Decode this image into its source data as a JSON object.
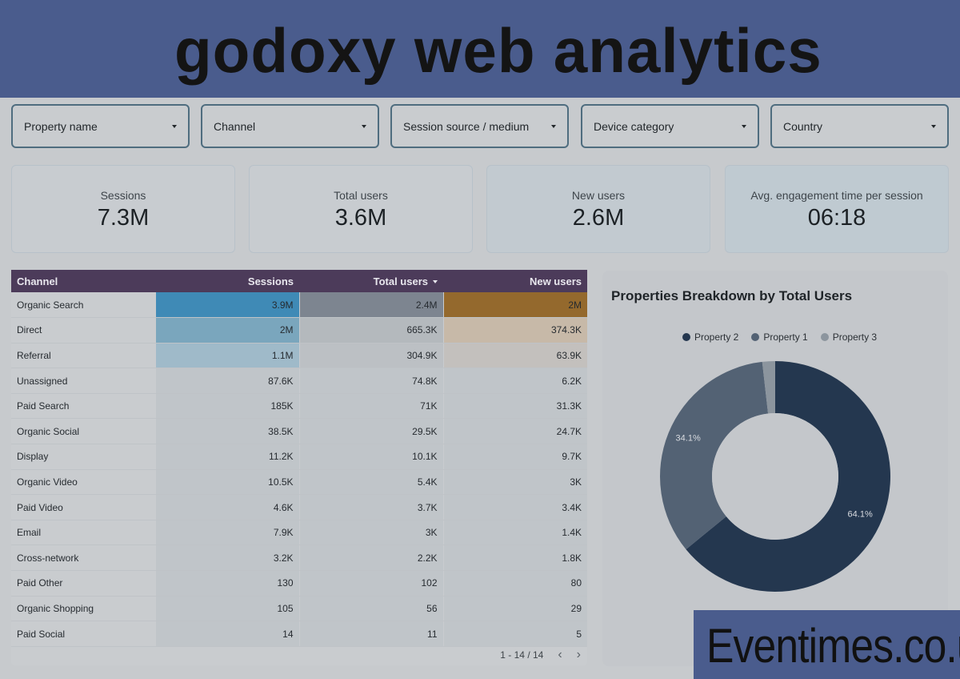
{
  "banner": {
    "title": "godoxy web analytics"
  },
  "filters": [
    {
      "label": "Property name"
    },
    {
      "label": "Channel"
    },
    {
      "label": "Session source / medium"
    },
    {
      "label": "Device category"
    },
    {
      "label": "Country"
    }
  ],
  "kpis": [
    {
      "label": "Sessions",
      "value": "7.3M"
    },
    {
      "label": "Total users",
      "value": "3.6M"
    },
    {
      "label": "New users",
      "value": "2.6M"
    },
    {
      "label": "Avg. engagement time per session",
      "value": "06:18"
    }
  ],
  "table": {
    "columns": [
      "Channel",
      "Sessions",
      "Total users",
      "New users"
    ],
    "rows": [
      [
        "Organic Search",
        "3.9M",
        "2.4M",
        "2M"
      ],
      [
        "Direct",
        "2M",
        "665.3K",
        "374.3K"
      ],
      [
        "Referral",
        "1.1M",
        "304.9K",
        "63.9K"
      ],
      [
        "Unassigned",
        "87.6K",
        "74.8K",
        "6.2K"
      ],
      [
        "Paid Search",
        "185K",
        "71K",
        "31.3K"
      ],
      [
        "Organic Social",
        "38.5K",
        "29.5K",
        "24.7K"
      ],
      [
        "Display",
        "11.2K",
        "10.1K",
        "9.7K"
      ],
      [
        "Organic Video",
        "10.5K",
        "5.4K",
        "3K"
      ],
      [
        "Paid Video",
        "4.6K",
        "3.7K",
        "3.4K"
      ],
      [
        "Email",
        "7.9K",
        "3K",
        "1.4K"
      ],
      [
        "Cross-network",
        "3.2K",
        "2.2K",
        "1.8K"
      ],
      [
        "Paid Other",
        "130",
        "102",
        "80"
      ],
      [
        "Organic Shopping",
        "105",
        "56",
        "29"
      ],
      [
        "Paid Social",
        "14",
        "11",
        "5"
      ]
    ],
    "heat_colors": {
      "sessions": [
        "#3f8ab6",
        "#7aa6bd",
        "#9fbac9"
      ],
      "total_users": [
        "#7d8590",
        "#b4b9bd",
        "#bcc0c4"
      ],
      "new_users": [
        "#94692d",
        "#c7b9a8",
        "#c3c0bd"
      ]
    },
    "pagination": {
      "range": "1 - 14 / 14",
      "prev_icon": "chevron-left-icon",
      "next_icon": "chevron-right-icon"
    }
  },
  "chart_data": {
    "type": "pie",
    "title": "Properties Breakdown by Total Users",
    "legend_position": "top",
    "series": [
      {
        "name": "Property 2",
        "value": 64.1,
        "label": "64.1%",
        "color": "#24374f"
      },
      {
        "name": "Property 1",
        "value": 34.1,
        "label": "34.1%",
        "color": "#536274"
      },
      {
        "name": "Property 3",
        "value": 1.8,
        "label": "",
        "color": "#8c959e"
      }
    ]
  },
  "watermark": {
    "text": "Eventimes.co.uk"
  }
}
